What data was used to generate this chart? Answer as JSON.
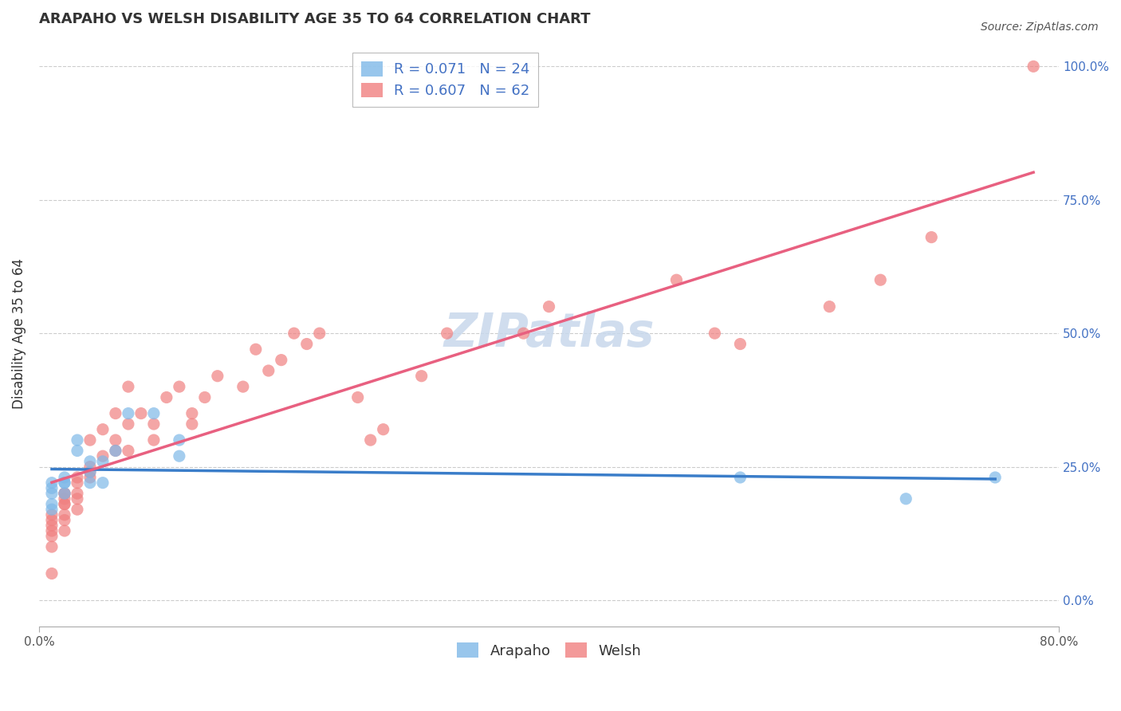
{
  "title": "ARAPAHO VS WELSH DISABILITY AGE 35 TO 64 CORRELATION CHART",
  "source": "Source: ZipAtlas.com",
  "ylabel": "Disability Age 35 to 64",
  "xlim": [
    0.0,
    0.8
  ],
  "ylim": [
    -0.05,
    1.05
  ],
  "ytick_positions": [
    0.0,
    0.25,
    0.5,
    0.75,
    1.0
  ],
  "xtick_positions": [
    0.0,
    0.8
  ],
  "arapaho_R": 0.071,
  "arapaho_N": 24,
  "welsh_R": 0.607,
  "welsh_N": 62,
  "arapaho_color": "#7EB8E8",
  "welsh_color": "#F08080",
  "arapaho_line_color": "#3A7DC9",
  "welsh_line_color": "#E86080",
  "legend_arapaho_text": "R = 0.071   N = 24",
  "legend_welsh_text": "R = 0.607   N = 62",
  "watermark": "ZIPatlas",
  "background_color": "#FFFFFF",
  "arapaho_x": [
    0.01,
    0.01,
    0.01,
    0.01,
    0.01,
    0.02,
    0.02,
    0.02,
    0.02,
    0.03,
    0.03,
    0.04,
    0.04,
    0.04,
    0.05,
    0.05,
    0.06,
    0.07,
    0.09,
    0.11,
    0.11,
    0.55,
    0.68,
    0.75
  ],
  "arapaho_y": [
    0.2,
    0.21,
    0.22,
    0.18,
    0.17,
    0.22,
    0.23,
    0.22,
    0.2,
    0.3,
    0.28,
    0.26,
    0.24,
    0.22,
    0.22,
    0.26,
    0.28,
    0.35,
    0.35,
    0.3,
    0.27,
    0.23,
    0.19,
    0.23
  ],
  "welsh_x": [
    0.01,
    0.01,
    0.01,
    0.01,
    0.01,
    0.01,
    0.01,
    0.02,
    0.02,
    0.02,
    0.02,
    0.02,
    0.02,
    0.02,
    0.02,
    0.03,
    0.03,
    0.03,
    0.03,
    0.03,
    0.04,
    0.04,
    0.04,
    0.04,
    0.05,
    0.05,
    0.06,
    0.06,
    0.06,
    0.07,
    0.07,
    0.07,
    0.08,
    0.09,
    0.09,
    0.1,
    0.11,
    0.12,
    0.12,
    0.13,
    0.14,
    0.16,
    0.17,
    0.18,
    0.19,
    0.2,
    0.21,
    0.22,
    0.25,
    0.26,
    0.27,
    0.3,
    0.32,
    0.38,
    0.4,
    0.5,
    0.53,
    0.55,
    0.62,
    0.66,
    0.7,
    0.78
  ],
  "welsh_y": [
    0.05,
    0.1,
    0.12,
    0.14,
    0.15,
    0.13,
    0.16,
    0.16,
    0.13,
    0.18,
    0.2,
    0.19,
    0.2,
    0.18,
    0.15,
    0.2,
    0.19,
    0.22,
    0.17,
    0.23,
    0.25,
    0.24,
    0.23,
    0.3,
    0.27,
    0.32,
    0.28,
    0.3,
    0.35,
    0.28,
    0.33,
    0.4,
    0.35,
    0.3,
    0.33,
    0.38,
    0.4,
    0.35,
    0.33,
    0.38,
    0.42,
    0.4,
    0.47,
    0.43,
    0.45,
    0.5,
    0.48,
    0.5,
    0.38,
    0.3,
    0.32,
    0.42,
    0.5,
    0.5,
    0.55,
    0.6,
    0.5,
    0.48,
    0.55,
    0.6,
    0.68,
    1.0
  ],
  "title_fontsize": 13,
  "axis_label_fontsize": 12,
  "tick_fontsize": 11,
  "legend_fontsize": 13,
  "watermark_fontsize": 42,
  "source_fontsize": 10
}
